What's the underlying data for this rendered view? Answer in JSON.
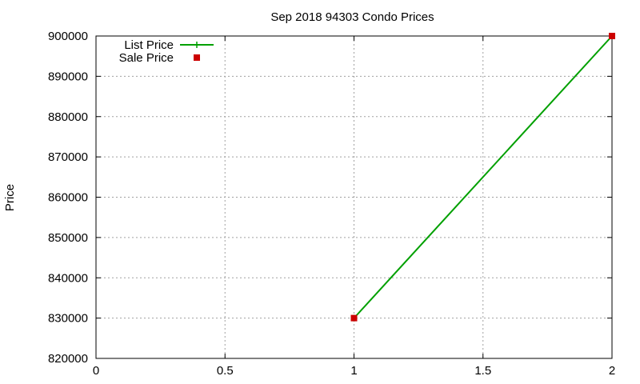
{
  "chart_data": {
    "type": "line",
    "title": "Sep 2018 94303 Condo Prices",
    "xlabel": "",
    "ylabel": "Price",
    "xlim": [
      0,
      2
    ],
    "ylim": [
      820000,
      900000
    ],
    "x_ticks": [
      "0",
      "0.5",
      "1",
      "1.5",
      "2"
    ],
    "y_ticks": [
      "820000",
      "830000",
      "840000",
      "850000",
      "860000",
      "870000",
      "880000",
      "890000",
      "900000"
    ],
    "grid": true,
    "legend_position": "top-left",
    "series": [
      {
        "name": "List Price",
        "style": "line-with-plus-markers",
        "color": "#00a000",
        "x": [
          1,
          2
        ],
        "y": [
          830000,
          900000
        ]
      },
      {
        "name": "Sale Price",
        "style": "square-markers",
        "color": "#cc0000",
        "x": [
          1,
          2
        ],
        "y": [
          830000,
          900000
        ]
      }
    ]
  }
}
